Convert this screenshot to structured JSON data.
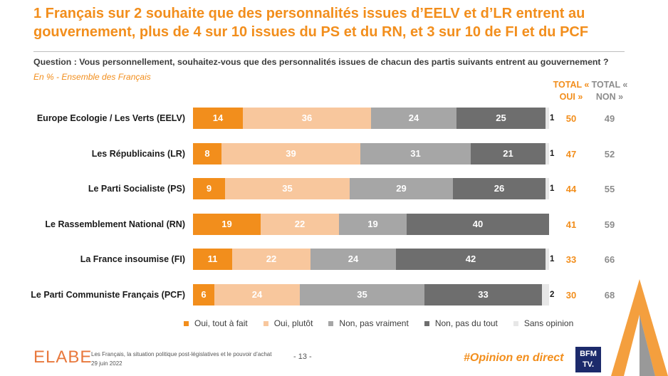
{
  "title": "1 Français sur 2 souhaite que des personnalités issues d’EELV et d’LR entrent au gouvernement, plus de 4 sur 10 issues du PS et du RN, et 3 sur 10 de FI et du PCF",
  "question": "Question : Vous personnellement, souhaitez-vous que des personnalités issues de chacun des partis suivants entrent au gouvernement ?",
  "subtitle": "En % - Ensemble des Français",
  "totals_header": {
    "oui": "TOTAL « OUI »",
    "non": "TOTAL « NON »"
  },
  "colors": {
    "oui_tout_a_fait": "#F28E1C",
    "oui_plutot": "#F8C79D",
    "non_pas_vraiment": "#A6A6A6",
    "non_pas_du_tout": "#6E6E6E",
    "sans_opinion": "#E7E7E7",
    "accent": "#F28E1C"
  },
  "chart_data": {
    "type": "bar",
    "orientation": "horizontal",
    "stacked": true,
    "categories": [
      "Europe Ecologie / Les Verts (EELV)",
      "Les Républicains (LR)",
      "Le Parti Socialiste (PS)",
      "Le Rassemblement National (RN)",
      "La France insoumise (FI)",
      "Le Parti Communiste Français (PCF)"
    ],
    "series": [
      {
        "name": "Oui, tout à fait",
        "values": [
          14,
          8,
          9,
          19,
          11,
          6
        ]
      },
      {
        "name": "Oui, plutôt",
        "values": [
          36,
          39,
          35,
          22,
          22,
          24
        ]
      },
      {
        "name": "Non, pas vraiment",
        "values": [
          24,
          31,
          29,
          19,
          24,
          35
        ]
      },
      {
        "name": "Non, pas du tout",
        "values": [
          25,
          21,
          26,
          40,
          42,
          33
        ]
      },
      {
        "name": "Sans opinion",
        "values": [
          1,
          1,
          1,
          0,
          1,
          2
        ]
      }
    ],
    "total_oui": [
      50,
      47,
      44,
      41,
      33,
      30
    ],
    "total_non": [
      49,
      52,
      55,
      59,
      66,
      68
    ],
    "xlim": [
      0,
      100
    ],
    "legend_position": "bottom"
  },
  "footer": {
    "logo": "ELABE",
    "study": "Les Français, la situation politique post-législatives et le pouvoir d’achat",
    "date": "29 juin 2022",
    "page": "- 13 -",
    "hashtag": "#Opinion en direct",
    "tv_logo_line1": "BFM",
    "tv_logo_line2": "TV."
  }
}
